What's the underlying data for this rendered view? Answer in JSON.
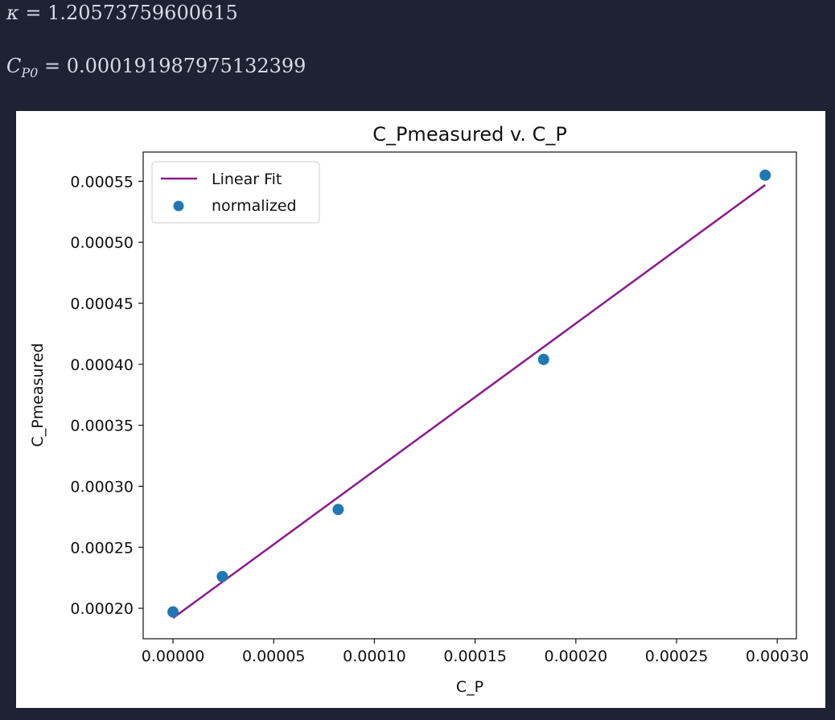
{
  "header": {
    "kappa_symbol": "κ",
    "kappa_eq": " = 1.20573759600615",
    "cp0_symbol": "C",
    "cp0_sub": "P0",
    "cp0_eq": " = 0.000191987975132399"
  },
  "colors": {
    "background": "#1f2233",
    "fit_line": "#8b1a8f",
    "points": "#1f77b4"
  },
  "chart_data": {
    "type": "scatter",
    "title": "C_Pmeasured v. C_P",
    "xlabel": "C_P",
    "ylabel": "C_Pmeasured",
    "xlim": [
      -1.48e-05,
      0.0003095
    ],
    "ylim": [
      0.000175,
      0.000574
    ],
    "xticks": [
      0,
      5e-05,
      0.0001,
      0.00015,
      0.0002,
      0.00025,
      0.0003
    ],
    "xtick_labels": [
      "0.00000",
      "0.00005",
      "0.00010",
      "0.00015",
      "0.00020",
      "0.00025",
      "0.00030"
    ],
    "yticks": [
      0.0002,
      0.00025,
      0.0003,
      0.00035,
      0.0004,
      0.00045,
      0.0005,
      0.00055
    ],
    "ytick_labels": [
      "0.00020",
      "0.00025",
      "0.00030",
      "0.00035",
      "0.00040",
      "0.00045",
      "0.00050",
      "0.00055"
    ],
    "legend_position": "upper-left",
    "series": [
      {
        "name": "Linear Fit",
        "kind": "line",
        "color": "#8b1a8f",
        "x": [
          0,
          0.000294
        ],
        "y": [
          0.000192,
          0.000547
        ]
      },
      {
        "name": "normalized",
        "kind": "scatter",
        "color": "#1f77b4",
        "x": [
          0,
          2.45e-05,
          8.2e-05,
          0.000184,
          0.000294
        ],
        "y": [
          0.000197,
          0.000226,
          0.000281,
          0.000404,
          0.000555
        ]
      }
    ]
  }
}
